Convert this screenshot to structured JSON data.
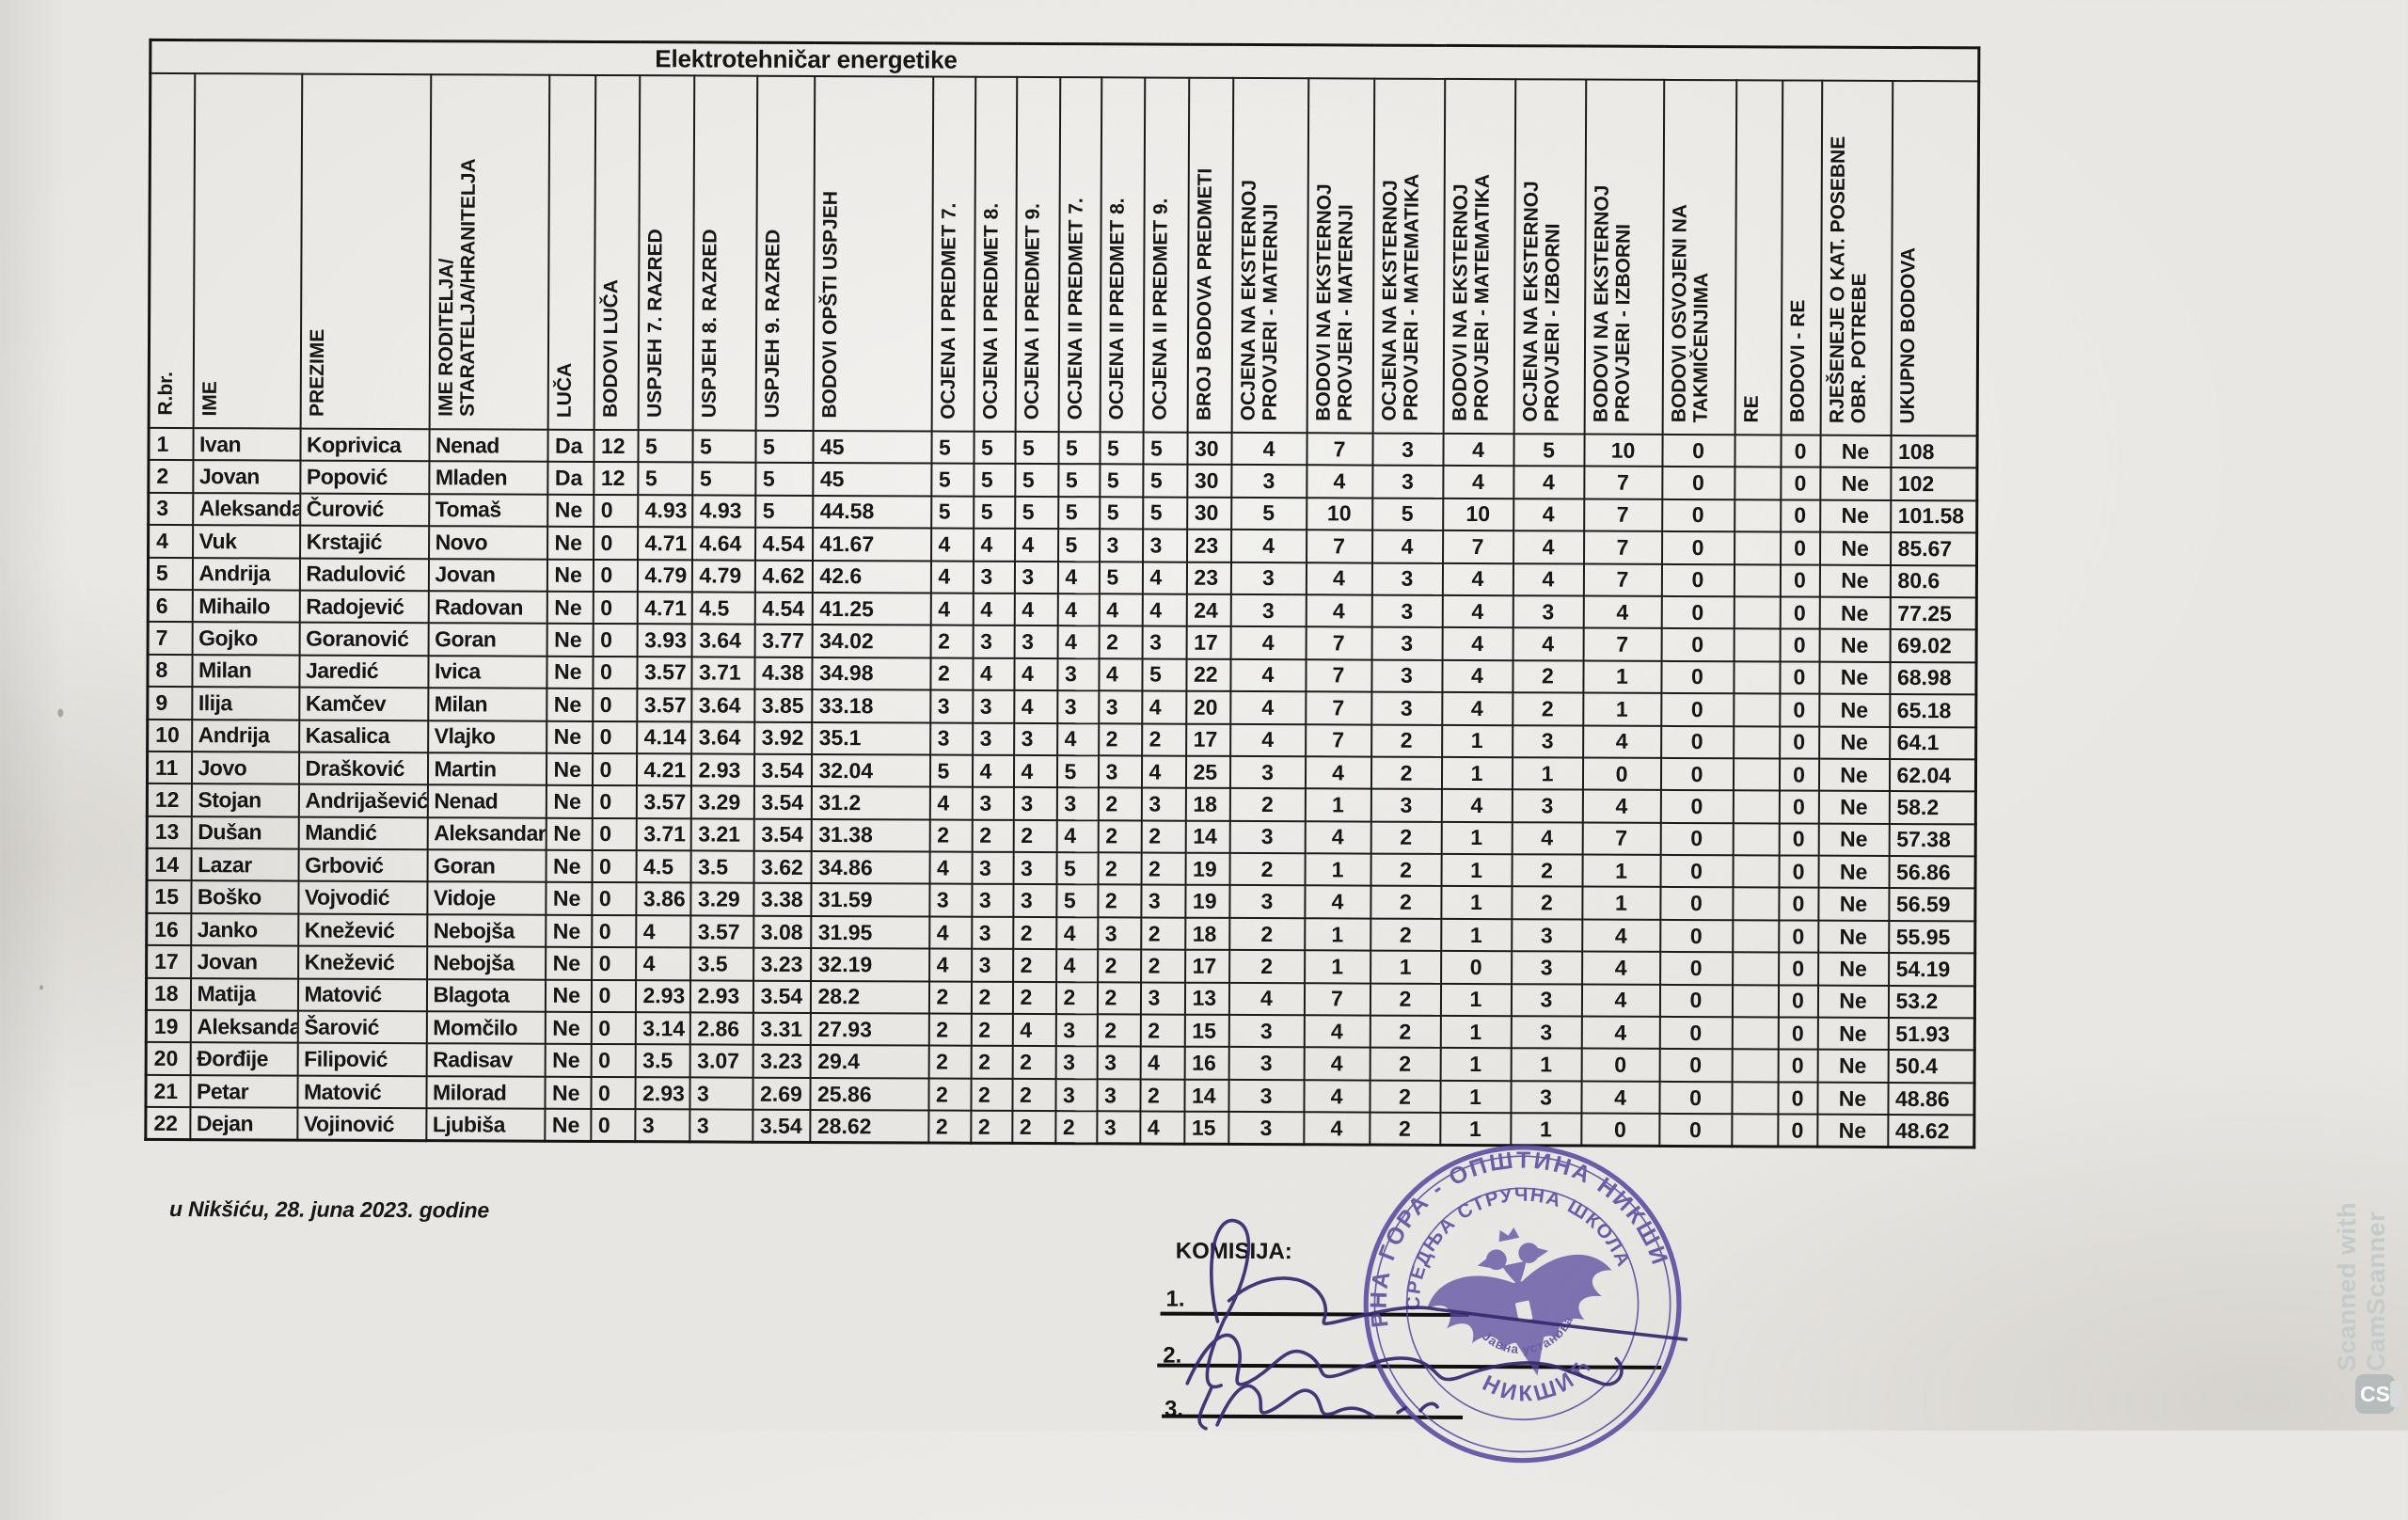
{
  "page": {
    "title": "Elektrotehničar energetike"
  },
  "table": {
    "columns": [
      "R.br.",
      "IME",
      "PREZIME",
      "IME RODITELJA/\nSTARATELJA/HRANITELJA",
      "LUČA",
      "BODOVI LUČA",
      "USPJEH 7. RAZRED",
      "USPJEH 8. RAZRED",
      "USPJEH 9. RAZRED",
      "BODOVI OPŠTI USPJEH",
      "OCJENA I PREDMET 7.",
      "OCJENA I PREDMET 8.",
      "OCJENA I PREDMET 9.",
      "OCJENA II PREDMET 7.",
      "OCJENA II PREDMET 8.",
      "OCJENA II PREDMET 9.",
      "BROJ BODOVA PREDMETI",
      "OCJENA NA EKSTERNOJ\nPROVJERI - MATERNJI",
      "BODOVI NA EKSTERNOJ\nPROVJERI - MATERNJI",
      "OCJENA NA EKSTERNOJ\nPROVJERI - MATEMATIKA",
      "BODOVI NA EKSTERNOJ\nPROVJERI - MATEMATIKA",
      "OCJENA NA EKSTERNOJ\nPROVJERI - IZBORNI",
      "BODOVI NA EKSTERNOJ\nPROVJERI - IZBORNI",
      "BODOVI OSVOJENI NA\nTAKMIČENJIMA",
      "RE",
      "BODOVI - RE",
      "RJEŠENEJE O KAT. POSEBNE\nOBR. POTREBE",
      "UKUPNO BODOVA"
    ],
    "rows": [
      [
        "1",
        "Ivan",
        "Koprivica",
        "Nenad",
        "Da",
        "12",
        "5",
        "5",
        "5",
        "45",
        "5",
        "5",
        "5",
        "5",
        "5",
        "5",
        "30",
        "4",
        "7",
        "3",
        "4",
        "5",
        "10",
        "0",
        "",
        "0",
        "Ne",
        "108"
      ],
      [
        "2",
        "Jovan",
        "Popović",
        "Mladen",
        "Da",
        "12",
        "5",
        "5",
        "5",
        "45",
        "5",
        "5",
        "5",
        "5",
        "5",
        "5",
        "30",
        "3",
        "4",
        "3",
        "4",
        "4",
        "7",
        "0",
        "",
        "0",
        "Ne",
        "102"
      ],
      [
        "3",
        "Aleksandar",
        "Čurović",
        "Tomaš",
        "Ne",
        "0",
        "4.93",
        "4.93",
        "5",
        "44.58",
        "5",
        "5",
        "5",
        "5",
        "5",
        "5",
        "30",
        "5",
        "10",
        "5",
        "10",
        "4",
        "7",
        "0",
        "",
        "0",
        "Ne",
        "101.58"
      ],
      [
        "4",
        "Vuk",
        "Krstajić",
        "Novo",
        "Ne",
        "0",
        "4.71",
        "4.64",
        "4.54",
        "41.67",
        "4",
        "4",
        "4",
        "5",
        "3",
        "3",
        "23",
        "4",
        "7",
        "4",
        "7",
        "4",
        "7",
        "0",
        "",
        "0",
        "Ne",
        "85.67"
      ],
      [
        "5",
        "Andrija",
        "Radulović",
        "Jovan",
        "Ne",
        "0",
        "4.79",
        "4.79",
        "4.62",
        "42.6",
        "4",
        "3",
        "3",
        "4",
        "5",
        "4",
        "23",
        "3",
        "4",
        "3",
        "4",
        "4",
        "7",
        "0",
        "",
        "0",
        "Ne",
        "80.6"
      ],
      [
        "6",
        "Mihailo",
        "Radojević",
        "Radovan",
        "Ne",
        "0",
        "4.71",
        "4.5",
        "4.54",
        "41.25",
        "4",
        "4",
        "4",
        "4",
        "4",
        "4",
        "24",
        "3",
        "4",
        "3",
        "4",
        "3",
        "4",
        "0",
        "",
        "0",
        "Ne",
        "77.25"
      ],
      [
        "7",
        "Gojko",
        "Goranović",
        "Goran",
        "Ne",
        "0",
        "3.93",
        "3.64",
        "3.77",
        "34.02",
        "2",
        "3",
        "3",
        "4",
        "2",
        "3",
        "17",
        "4",
        "7",
        "3",
        "4",
        "4",
        "7",
        "0",
        "",
        "0",
        "Ne",
        "69.02"
      ],
      [
        "8",
        "Milan",
        "Jaredić",
        "Ivica",
        "Ne",
        "0",
        "3.57",
        "3.71",
        "4.38",
        "34.98",
        "2",
        "4",
        "4",
        "3",
        "4",
        "5",
        "22",
        "4",
        "7",
        "3",
        "4",
        "2",
        "1",
        "0",
        "",
        "0",
        "Ne",
        "68.98"
      ],
      [
        "9",
        "Ilija",
        "Kamčev",
        "Milan",
        "Ne",
        "0",
        "3.57",
        "3.64",
        "3.85",
        "33.18",
        "3",
        "3",
        "4",
        "3",
        "3",
        "4",
        "20",
        "4",
        "7",
        "3",
        "4",
        "2",
        "1",
        "0",
        "",
        "0",
        "Ne",
        "65.18"
      ],
      [
        "10",
        "Andrija",
        "Kasalica",
        "Vlajko",
        "Ne",
        "0",
        "4.14",
        "3.64",
        "3.92",
        "35.1",
        "3",
        "3",
        "3",
        "4",
        "2",
        "2",
        "17",
        "4",
        "7",
        "2",
        "1",
        "3",
        "4",
        "0",
        "",
        "0",
        "Ne",
        "64.1"
      ],
      [
        "11",
        "Jovo",
        "Drašković",
        "Martin",
        "Ne",
        "0",
        "4.21",
        "2.93",
        "3.54",
        "32.04",
        "5",
        "4",
        "4",
        "5",
        "3",
        "4",
        "25",
        "3",
        "4",
        "2",
        "1",
        "1",
        "0",
        "0",
        "",
        "0",
        "Ne",
        "62.04"
      ],
      [
        "12",
        "Stojan",
        "Andrijašević",
        "Nenad",
        "Ne",
        "0",
        "3.57",
        "3.29",
        "3.54",
        "31.2",
        "4",
        "3",
        "3",
        "3",
        "2",
        "3",
        "18",
        "2",
        "1",
        "3",
        "4",
        "3",
        "4",
        "0",
        "",
        "0",
        "Ne",
        "58.2"
      ],
      [
        "13",
        "Dušan",
        "Mandić",
        "Aleksandar",
        "Ne",
        "0",
        "3.71",
        "3.21",
        "3.54",
        "31.38",
        "2",
        "2",
        "2",
        "4",
        "2",
        "2",
        "14",
        "3",
        "4",
        "2",
        "1",
        "4",
        "7",
        "0",
        "",
        "0",
        "Ne",
        "57.38"
      ],
      [
        "14",
        "Lazar",
        "Grbović",
        "Goran",
        "Ne",
        "0",
        "4.5",
        "3.5",
        "3.62",
        "34.86",
        "4",
        "3",
        "3",
        "5",
        "2",
        "2",
        "19",
        "2",
        "1",
        "2",
        "1",
        "2",
        "1",
        "0",
        "",
        "0",
        "Ne",
        "56.86"
      ],
      [
        "15",
        "Boško",
        "Vojvodić",
        "Vidoje",
        "Ne",
        "0",
        "3.86",
        "3.29",
        "3.38",
        "31.59",
        "3",
        "3",
        "3",
        "5",
        "2",
        "3",
        "19",
        "3",
        "4",
        "2",
        "1",
        "2",
        "1",
        "0",
        "",
        "0",
        "Ne",
        "56.59"
      ],
      [
        "16",
        "Janko",
        "Knežević",
        "Nebojša",
        "Ne",
        "0",
        "4",
        "3.57",
        "3.08",
        "31.95",
        "4",
        "3",
        "2",
        "4",
        "3",
        "2",
        "18",
        "2",
        "1",
        "2",
        "1",
        "3",
        "4",
        "0",
        "",
        "0",
        "Ne",
        "55.95"
      ],
      [
        "17",
        "Jovan",
        "Knežević",
        "Nebojša",
        "Ne",
        "0",
        "4",
        "3.5",
        "3.23",
        "32.19",
        "4",
        "3",
        "2",
        "4",
        "2",
        "2",
        "17",
        "2",
        "1",
        "1",
        "0",
        "3",
        "4",
        "0",
        "",
        "0",
        "Ne",
        "54.19"
      ],
      [
        "18",
        "Matija",
        "Matović",
        "Blagota",
        "Ne",
        "0",
        "2.93",
        "2.93",
        "3.54",
        "28.2",
        "2",
        "2",
        "2",
        "2",
        "2",
        "3",
        "13",
        "4",
        "7",
        "2",
        "1",
        "3",
        "4",
        "0",
        "",
        "0",
        "Ne",
        "53.2"
      ],
      [
        "19",
        "Aleksandar",
        "Šarović",
        "Momčilo",
        "Ne",
        "0",
        "3.14",
        "2.86",
        "3.31",
        "27.93",
        "2",
        "2",
        "4",
        "3",
        "2",
        "2",
        "15",
        "3",
        "4",
        "2",
        "1",
        "3",
        "4",
        "0",
        "",
        "0",
        "Ne",
        "51.93"
      ],
      [
        "20",
        "Đorđije",
        "Filipović",
        "Radisav",
        "Ne",
        "0",
        "3.5",
        "3.07",
        "3.23",
        "29.4",
        "2",
        "2",
        "2",
        "3",
        "3",
        "4",
        "16",
        "3",
        "4",
        "2",
        "1",
        "1",
        "0",
        "0",
        "",
        "0",
        "Ne",
        "50.4"
      ],
      [
        "21",
        "Petar",
        "Matović",
        "Milorad",
        "Ne",
        "0",
        "2.93",
        "3",
        "2.69",
        "25.86",
        "2",
        "2",
        "2",
        "3",
        "3",
        "2",
        "14",
        "3",
        "4",
        "2",
        "1",
        "3",
        "4",
        "0",
        "",
        "0",
        "Ne",
        "48.86"
      ],
      [
        "22",
        "Dejan",
        "Vojinović",
        "Ljubiša",
        "Ne",
        "0",
        "3",
        "3",
        "3.54",
        "28.62",
        "2",
        "2",
        "2",
        "2",
        "3",
        "4",
        "15",
        "3",
        "4",
        "2",
        "1",
        "1",
        "0",
        "0",
        "",
        "0",
        "Ne",
        "48.62"
      ]
    ]
  },
  "footer": {
    "date_text": "u Nikšiću, 28. juna 2023. godine",
    "commission_label": "KOMISIJA:",
    "signature_numbers": [
      "1.",
      "2.",
      "3."
    ]
  },
  "stamp": {
    "outer_text": "ЦРНА ГОРА - ОПШТИНА НИКШИЋ",
    "ring_text": "СРЕДЊА СТРУЧНА ШКОЛА",
    "inner_text": "Јавна установа",
    "city_text": "НИКШИЋ",
    "ink_color": "#5b4aa0"
  },
  "signature_ink_color": "#352a6e",
  "watermark": {
    "text": "Scanned with CamScanner",
    "logo": "CS",
    "color": "#c6cac8"
  }
}
